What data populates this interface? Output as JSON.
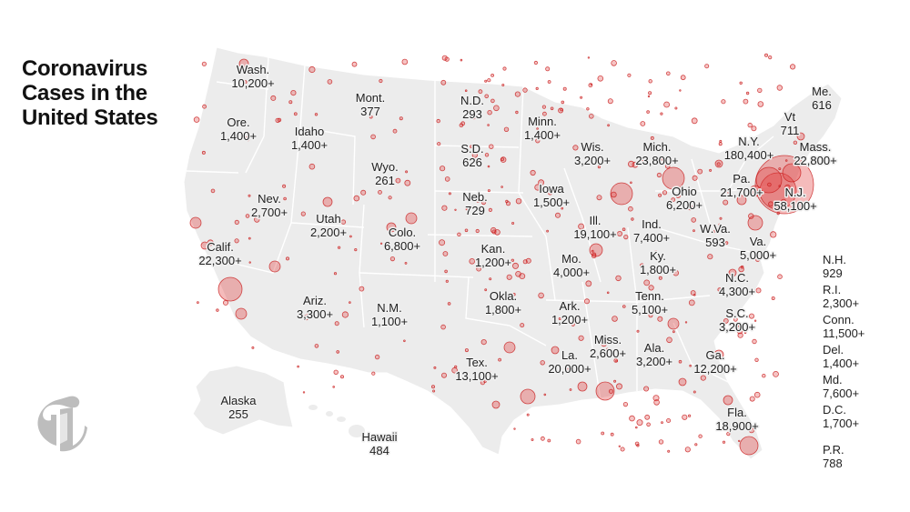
{
  "title": "Coronavirus Cases in the United States",
  "colors": {
    "land": "#ececec",
    "border": "#ffffff",
    "bubble_fill": "#e23b3b",
    "bubble_stroke": "#c81e1e",
    "logo": "#bdbdbd"
  },
  "icons": {
    "logo": "nyt-t-logo-icon"
  },
  "states": [
    {
      "name": "Wash.",
      "value": "10,200+"
    },
    {
      "name": "Ore.",
      "value": "1,400+"
    },
    {
      "name": "Idaho",
      "value": "1,400+"
    },
    {
      "name": "Mont.",
      "value": "377"
    },
    {
      "name": "N.D.",
      "value": "293"
    },
    {
      "name": "Minn.",
      "value": "1,400+"
    },
    {
      "name": "S.D.",
      "value": "626"
    },
    {
      "name": "Wyo.",
      "value": "261"
    },
    {
      "name": "Wis.",
      "value": "3,200+"
    },
    {
      "name": "Mich.",
      "value": "23,800+"
    },
    {
      "name": "N.Y.",
      "value": "180,400+"
    },
    {
      "name": "Vt",
      "value": "711"
    },
    {
      "name": "Me.",
      "value": "616"
    },
    {
      "name": "Mass.",
      "value": "22,800+"
    },
    {
      "name": "Nev.",
      "value": "2,700+"
    },
    {
      "name": "Utah",
      "value": "2,200+"
    },
    {
      "name": "Colo.",
      "value": "6,800+"
    },
    {
      "name": "Neb.",
      "value": "729"
    },
    {
      "name": "Iowa",
      "value": "1,500+"
    },
    {
      "name": "Ohio",
      "value": "6,200+"
    },
    {
      "name": "Pa.",
      "value": "21,700+"
    },
    {
      "name": "N.J.",
      "value": "58,100+"
    },
    {
      "name": "Calif.",
      "value": "22,300+"
    },
    {
      "name": "Kan.",
      "value": "1,200+"
    },
    {
      "name": "Ill.",
      "value": "19,100+"
    },
    {
      "name": "Ind.",
      "value": "7,400+"
    },
    {
      "name": "W.Va.",
      "value": "593"
    },
    {
      "name": "Va.",
      "value": "5,000+"
    },
    {
      "name": "Mo.",
      "value": "4,000+"
    },
    {
      "name": "Ky.",
      "value": "1,800+"
    },
    {
      "name": "Ariz.",
      "value": "3,300+"
    },
    {
      "name": "N.M.",
      "value": "1,100+"
    },
    {
      "name": "Okla.",
      "value": "1,800+"
    },
    {
      "name": "Ark.",
      "value": "1,200+"
    },
    {
      "name": "Tenn.",
      "value": "5,100+"
    },
    {
      "name": "N.C.",
      "value": "4,300+"
    },
    {
      "name": "S.C.",
      "value": "3,200+"
    },
    {
      "name": "Miss.",
      "value": "2,600+"
    },
    {
      "name": "Ala.",
      "value": "3,200+"
    },
    {
      "name": "Ga.",
      "value": "12,200+"
    },
    {
      "name": "La.",
      "value": "20,000+"
    },
    {
      "name": "Tex.",
      "value": "13,100+"
    },
    {
      "name": "Fla.",
      "value": "18,900+"
    },
    {
      "name": "Alaska",
      "value": "255"
    },
    {
      "name": "Hawaii",
      "value": "484"
    }
  ],
  "side_states": [
    {
      "name": "N.H.",
      "value": "929"
    },
    {
      "name": "R.I.",
      "value": "2,300+"
    },
    {
      "name": "Conn.",
      "value": "11,500+"
    },
    {
      "name": "Del.",
      "value": "1,400+"
    },
    {
      "name": "Md.",
      "value": "7,600+"
    },
    {
      "name": "D.C.",
      "value": "1,700+"
    },
    {
      "name": "P.R.",
      "value": "788"
    }
  ]
}
